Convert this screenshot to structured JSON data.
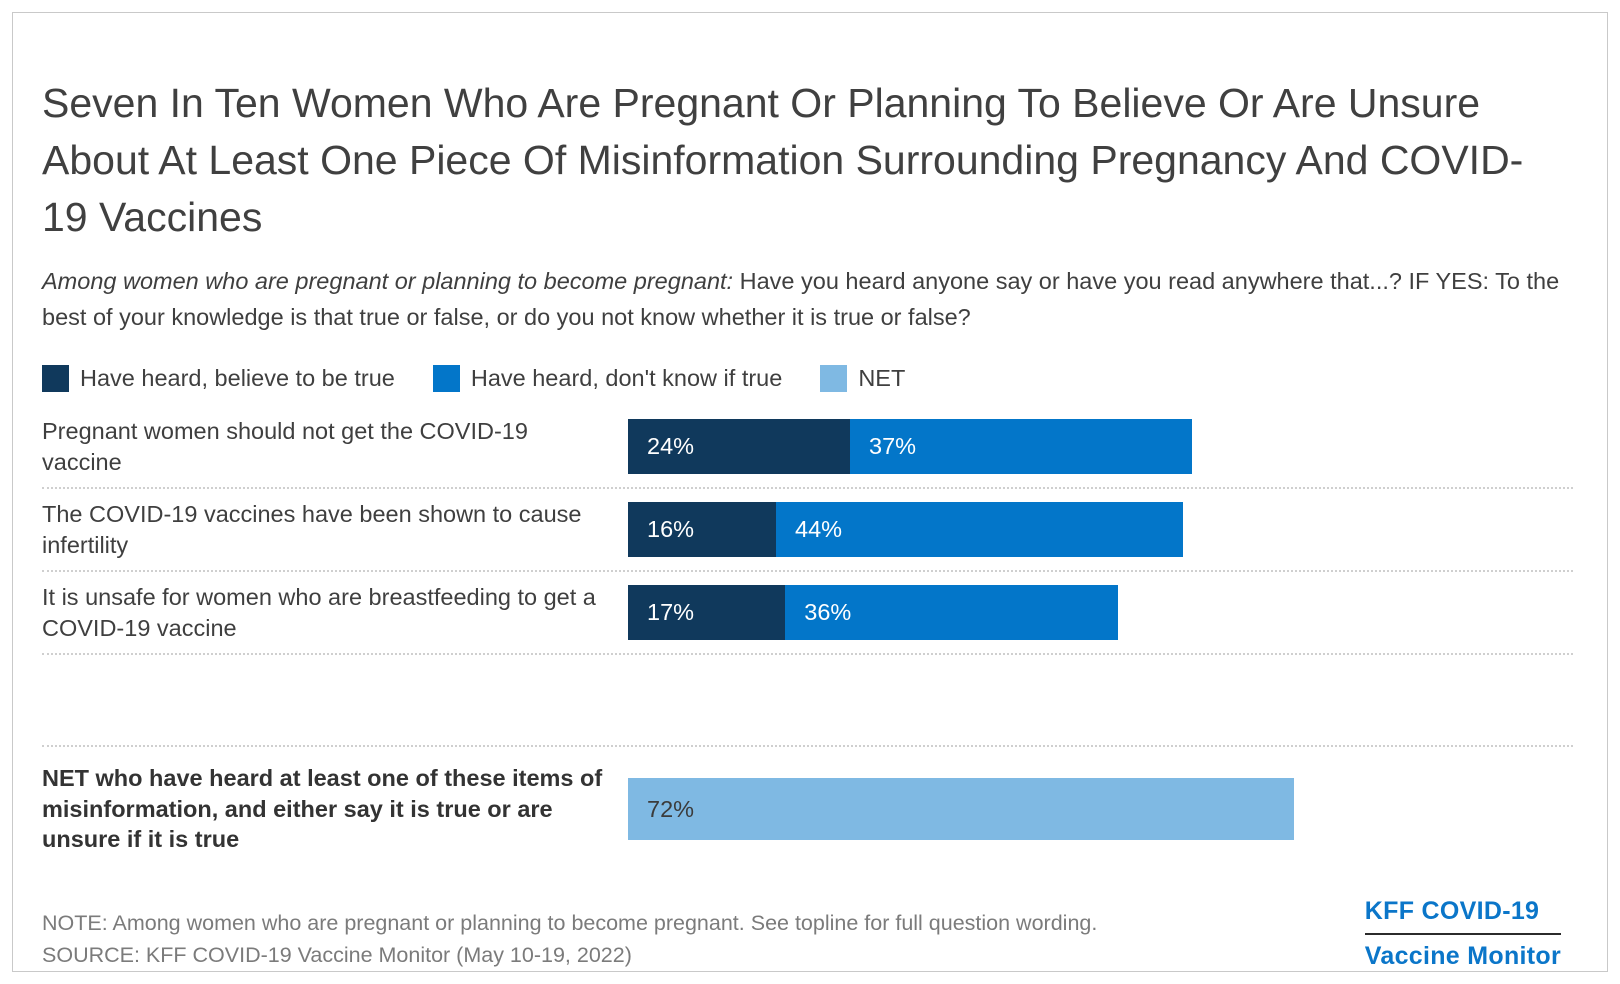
{
  "title": "Seven In Ten Women Who Are Pregnant Or Planning To Believe Or Are Unsure About At Least One Piece Of Misinformation Surrounding Pregnancy And COVID-19 Vaccines",
  "subtitle": {
    "italic": "Among women who are pregnant or planning to become pregnant:",
    "regular": "Have you heard anyone say or have you read anywhere that...? IF YES: To the best of your knowledge is that true or false, or do you not know whether it is true or false?"
  },
  "chart_data": {
    "type": "bar",
    "orientation": "horizontal",
    "stacked": true,
    "unit": "percent",
    "xlim": [
      0,
      100
    ],
    "grid": false,
    "legend_position": "top",
    "categories": [
      "Pregnant women should not get the COVID-19 vaccine",
      "The COVID-19 vaccines have been shown to cause infertility",
      "It is unsafe for women who are breastfeeding to get a COVID-19 vaccine"
    ],
    "series": [
      {
        "name": "Have heard, believe to be true",
        "color": "#10395C",
        "values": [
          24,
          16,
          17
        ]
      },
      {
        "name": "Have heard, don't know if true",
        "color": "#0376C9",
        "values": [
          37,
          44,
          36
        ]
      }
    ],
    "value_labels": [
      [
        "24%",
        "37%"
      ],
      [
        "16%",
        "44%"
      ],
      [
        "17%",
        "36%"
      ]
    ],
    "net": {
      "legend_label": "NET",
      "label": "NET who have heard at least one of these items of misinformation, and either say it is true or are unsure if it is true",
      "value": 72,
      "text": "72%",
      "color": "#7FB9E3"
    }
  },
  "footer": {
    "note": "NOTE: Among women who are pregnant or planning to become pregnant. See topline for full question wording.",
    "source": "SOURCE: KFF COVID-19 Vaccine Monitor (May 10-19, 2022)",
    "logo": {
      "line1": "KFF COVID-19",
      "line2": "Vaccine Monitor"
    }
  },
  "colors": {
    "dark_navy": "#10395C",
    "medium_blue": "#0376C9",
    "light_blue": "#7FB9E3",
    "logo_blue": "#0B76C9",
    "title_text": "#404040",
    "muted_text": "#7B7B7B",
    "divider": "#CFCFCF"
  }
}
